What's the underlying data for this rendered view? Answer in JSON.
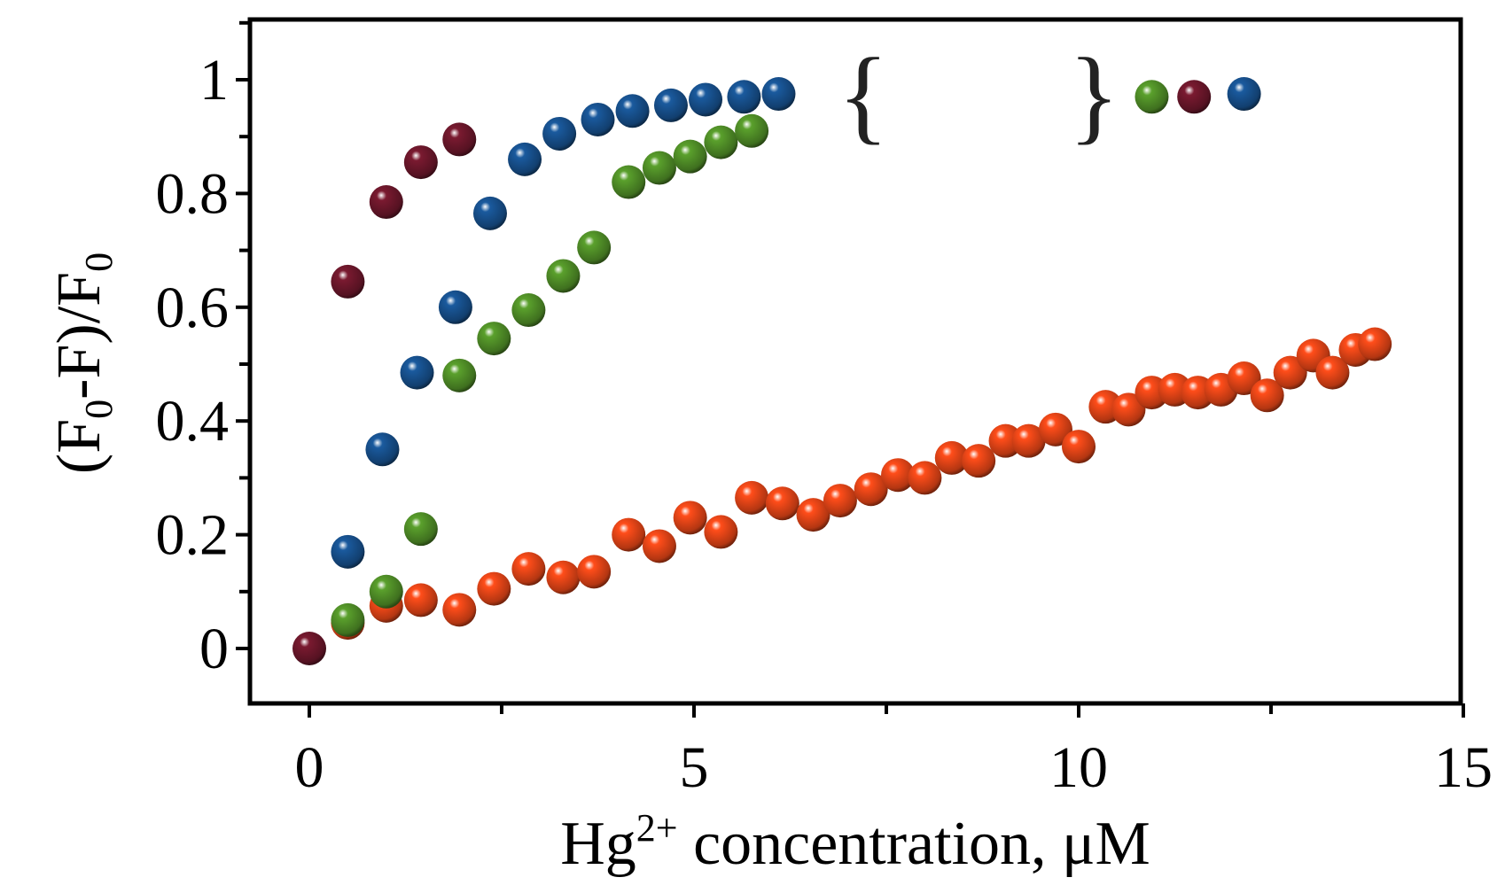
{
  "chart_data": {
    "type": "scatter",
    "title": "",
    "xlabel": {
      "base": "Hg",
      "sup": "2+",
      "rest": " concentration, μM"
    },
    "ylabel": {
      "p1": "(F",
      "s1": "0",
      "p2": "-F)/F",
      "s2": "0"
    },
    "xlim": [
      -0.8,
      15
    ],
    "ylim": [
      -0.1,
      1.1
    ],
    "x_ticks": [
      {
        "value": 0,
        "label": "0"
      },
      {
        "value": 5,
        "label": "5"
      },
      {
        "value": 10,
        "label": "10"
      },
      {
        "value": 15,
        "label": "15"
      }
    ],
    "y_ticks": [
      {
        "value": 0,
        "label": "0"
      },
      {
        "value": 0.2,
        "label": "0.2"
      },
      {
        "value": 0.4,
        "label": "0.4"
      },
      {
        "value": 0.6,
        "label": "0.6"
      },
      {
        "value": 0.8,
        "label": "0.8"
      },
      {
        "value": 1,
        "label": "1"
      }
    ],
    "grid": false,
    "axis_break": {
      "left_symbol": "{",
      "right_symbol": "}",
      "x_left": 7.2,
      "x_right": 10.2,
      "y": 0.97
    },
    "series": [
      {
        "name": "orange",
        "color": "#ff4d1a",
        "points": [
          [
            0.5,
            0.045
          ],
          [
            1.0,
            0.075
          ],
          [
            1.45,
            0.085
          ],
          [
            1.95,
            0.068
          ],
          [
            2.4,
            0.105
          ],
          [
            2.85,
            0.14
          ],
          [
            3.3,
            0.125
          ],
          [
            3.7,
            0.135
          ],
          [
            4.15,
            0.2
          ],
          [
            4.55,
            0.18
          ],
          [
            4.95,
            0.23
          ],
          [
            5.35,
            0.205
          ],
          [
            5.75,
            0.265
          ],
          [
            6.15,
            0.255
          ],
          [
            6.55,
            0.235
          ],
          [
            6.9,
            0.26
          ],
          [
            7.3,
            0.28
          ],
          [
            7.65,
            0.305
          ],
          [
            8.0,
            0.3
          ],
          [
            8.35,
            0.335
          ],
          [
            8.7,
            0.33
          ],
          [
            9.05,
            0.365
          ],
          [
            9.35,
            0.365
          ],
          [
            9.7,
            0.385
          ],
          [
            10.0,
            0.355
          ],
          [
            10.35,
            0.425
          ],
          [
            10.65,
            0.42
          ],
          [
            10.95,
            0.45
          ],
          [
            11.25,
            0.455
          ],
          [
            11.55,
            0.45
          ],
          [
            11.85,
            0.455
          ],
          [
            12.15,
            0.475
          ],
          [
            12.45,
            0.445
          ],
          [
            12.75,
            0.485
          ],
          [
            13.05,
            0.515
          ],
          [
            13.3,
            0.485
          ],
          [
            13.6,
            0.525
          ],
          [
            13.85,
            0.535
          ]
        ]
      },
      {
        "name": "green",
        "color": "#5aa02c",
        "points": [
          [
            0.5,
            0.05
          ],
          [
            1.0,
            0.1
          ],
          [
            1.45,
            0.21
          ],
          [
            1.95,
            0.48
          ],
          [
            2.4,
            0.545
          ],
          [
            2.85,
            0.595
          ],
          [
            3.3,
            0.655
          ],
          [
            3.7,
            0.705
          ],
          [
            4.15,
            0.82
          ],
          [
            4.55,
            0.845
          ],
          [
            4.95,
            0.865
          ],
          [
            5.35,
            0.89
          ],
          [
            5.75,
            0.91
          ],
          [
            10.95,
            0.97
          ]
        ]
      },
      {
        "name": "blue",
        "color": "#1a5a9e",
        "points": [
          [
            0.5,
            0.17
          ],
          [
            0.95,
            0.35
          ],
          [
            1.4,
            0.485
          ],
          [
            1.9,
            0.6
          ],
          [
            2.35,
            0.765
          ],
          [
            2.8,
            0.86
          ],
          [
            3.25,
            0.905
          ],
          [
            3.75,
            0.93
          ],
          [
            4.2,
            0.945
          ],
          [
            4.7,
            0.955
          ],
          [
            5.15,
            0.965
          ],
          [
            5.65,
            0.97
          ],
          [
            6.1,
            0.975
          ],
          [
            12.15,
            0.975
          ]
        ]
      },
      {
        "name": "maroon",
        "color": "#7a1a30",
        "points": [
          [
            0.0,
            0.0
          ],
          [
            0.5,
            0.645
          ],
          [
            1.0,
            0.785
          ],
          [
            1.45,
            0.855
          ],
          [
            1.95,
            0.895
          ],
          [
            11.5,
            0.97
          ]
        ]
      }
    ]
  }
}
